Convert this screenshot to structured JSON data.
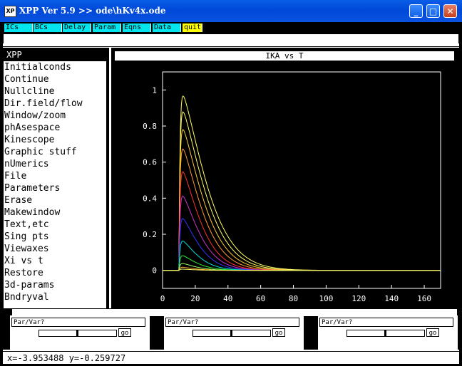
{
  "window": {
    "title": "XPP Ver 5.9 >> ode\\hKv4x.ode",
    "icon_text": "XP",
    "min": "_",
    "max": "□",
    "close": "✕"
  },
  "toolbar": [
    {
      "label": "ICs"
    },
    {
      "label": "BCs"
    },
    {
      "label": "Delay"
    },
    {
      "label": "Param"
    },
    {
      "label": "Eqns"
    },
    {
      "label": "Data"
    },
    {
      "label": "quit"
    }
  ],
  "menu": {
    "title": "XPP",
    "items": [
      "Initialconds",
      "Continue",
      "Nullcline",
      "Dir.field/flow",
      "Window/zoom",
      "phAsespace",
      "Kinescope",
      "Graphic stuff",
      "nUmerics",
      "File",
      "Parameters",
      "Erase",
      "Makewindow",
      "Text,etc",
      "Sing pts",
      "Viewaxes",
      "Xi vs t",
      "Restore",
      "3d-params",
      "Bndryval"
    ]
  },
  "graph": {
    "title": "IKA vs T"
  },
  "chart_data": {
    "type": "line",
    "title": "IKA vs T",
    "xlim": [
      0,
      170
    ],
    "ylim": [
      -0.1,
      1.1
    ],
    "xticks": [
      0,
      20,
      40,
      60,
      80,
      100,
      120,
      140,
      160
    ],
    "yticks": [
      0,
      0.2,
      0.4,
      0.6,
      0.8,
      1
    ],
    "grid": false,
    "series": [
      {
        "peak": 1.0,
        "decay": 25,
        "color": "#ffff66"
      },
      {
        "peak": 0.91,
        "decay": 23,
        "color": "#ffff66"
      },
      {
        "peak": 0.81,
        "decay": 21,
        "color": "#ffcc33"
      },
      {
        "peak": 0.7,
        "decay": 19,
        "color": "#ff9933"
      },
      {
        "peak": 0.57,
        "decay": 17,
        "color": "#ff3333"
      },
      {
        "peak": 0.43,
        "decay": 16,
        "color": "#cc33cc"
      },
      {
        "peak": 0.3,
        "decay": 15,
        "color": "#3333ff"
      },
      {
        "peak": 0.17,
        "decay": 14,
        "color": "#00dddd"
      },
      {
        "peak": 0.085,
        "decay": 13,
        "color": "#33ee33"
      },
      {
        "peak": 0.04,
        "decay": 12,
        "color": "#99ff66"
      },
      {
        "peak": 0.018,
        "decay": 11,
        "color": "#ffaa33"
      },
      {
        "peak": 0.007,
        "decay": 10,
        "color": "#ffff66"
      }
    ]
  },
  "params": [
    {
      "label": "Par/Var?",
      "go": "go"
    },
    {
      "label": "Par/Var?",
      "go": "go"
    },
    {
      "label": "Par/Var?",
      "go": "go"
    }
  ],
  "status": {
    "text": "x=-3.953488  y=-0.259727"
  }
}
